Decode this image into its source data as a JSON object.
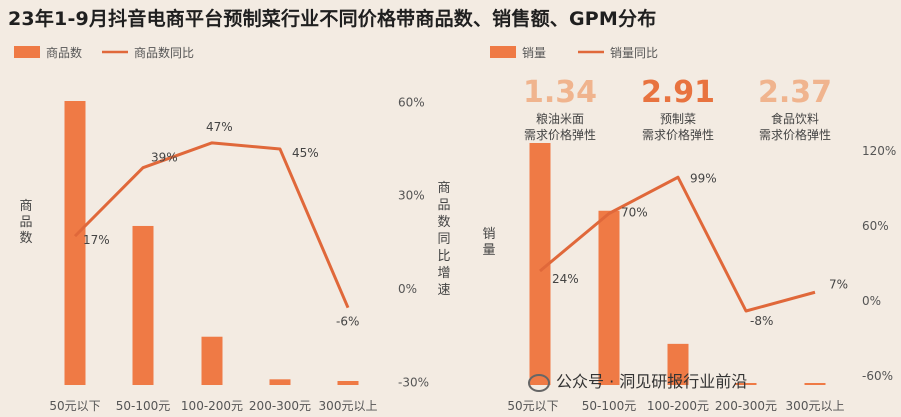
{
  "title": "23年1-9月抖音电商平台预制菜行业不同价格带商品数、销售额、GPM分布",
  "watermark_text": "公众号 · 洞见研报行业前沿",
  "colors": {
    "bar": "#ef7a45",
    "line": "#e0683a",
    "highlight": "#e8733f",
    "highlight_light": "#f0b48e"
  },
  "chart_data": [
    {
      "type": "bar+line",
      "legend": [
        "商品数",
        "商品数同比"
      ],
      "ylabel_left": "商品数",
      "ylabel_right": "商品数同比增速",
      "categories": [
        "50元以下",
        "50-100元",
        "100-200元",
        "200-300元",
        "300元以上"
      ],
      "bar_values_relative": [
        100,
        56,
        17,
        2,
        1
      ],
      "line_values": [
        17,
        39,
        47,
        45,
        -6
      ],
      "line_labels": [
        "17%",
        "39%",
        "47%",
        "45%",
        "-6%"
      ],
      "right_ticks": [
        "60%",
        "30%",
        "0%",
        "-30%"
      ],
      "right_tick_values": [
        60,
        30,
        0,
        -30
      ],
      "ylim_right": [
        -30,
        60
      ]
    },
    {
      "type": "bar+line",
      "legend": [
        "销量",
        "销量同比"
      ],
      "ylabel_left": "销量",
      "categories": [
        "50元以下",
        "50-100元",
        "100-200元",
        "200-300元",
        "300元以上"
      ],
      "bar_values_relative": [
        100,
        72,
        17,
        0,
        0
      ],
      "line_values": [
        24,
        70,
        99,
        -8,
        7
      ],
      "line_labels": [
        "24%",
        "70%",
        "99%",
        "-8%",
        "7%"
      ],
      "right_ticks": [
        "120%",
        "60%",
        "0%",
        "-60%"
      ],
      "right_tick_values": [
        120,
        60,
        0,
        -60
      ],
      "ylim_right": [
        -60,
        120
      ],
      "annotations": [
        {
          "value": "1.34",
          "line1": "粮油米面",
          "line2": "需求价格弹性"
        },
        {
          "value": "2.91",
          "line1": "预制菜",
          "line2": "需求价格弹性"
        },
        {
          "value": "2.37",
          "line1": "食品饮料",
          "line2": "需求价格弹性"
        }
      ]
    }
  ]
}
